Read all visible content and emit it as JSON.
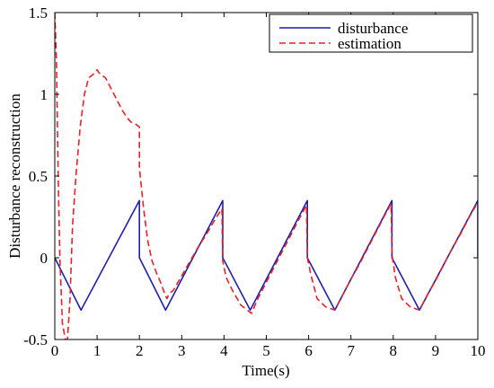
{
  "chart_data": {
    "type": "line",
    "title": "",
    "xlabel": "Time(s)",
    "ylabel": "Disturbance reconstruction",
    "xlim": [
      0,
      10
    ],
    "ylim": [
      -0.5,
      1.5
    ],
    "x_ticks": [
      0,
      1,
      2,
      3,
      4,
      5,
      6,
      7,
      8,
      9,
      10
    ],
    "y_ticks": [
      -0.5,
      0,
      0.5,
      1,
      1.5
    ],
    "y_tick_labels": [
      "-0.5",
      "0",
      "0.5",
      "1",
      "1.5"
    ],
    "grid": false,
    "legend_position": "top-right",
    "series": [
      {
        "name": "disturbance",
        "color": "#1f1fa8",
        "style": "solid",
        "x": [
          0,
          0.62,
          2,
          2,
          2.62,
          3.97,
          3.97,
          4.62,
          5.97,
          5.97,
          6.62,
          7.97,
          7.97,
          8.62,
          10,
          10
        ],
        "y": [
          0,
          -0.32,
          0.35,
          0,
          -0.32,
          0.35,
          0,
          -0.32,
          0.35,
          0,
          -0.32,
          0.35,
          0,
          -0.32,
          0.35,
          0
        ]
      },
      {
        "name": "estimation",
        "color": "#e8202a",
        "style": "dashed",
        "x": [
          0,
          0.04,
          0.08,
          0.12,
          0.18,
          0.25,
          0.3,
          0.36,
          0.42,
          0.5,
          0.6,
          0.7,
          0.8,
          0.9,
          1.0,
          1.05,
          1.1,
          1.2,
          1.3,
          1.4,
          1.5,
          1.6,
          1.7,
          1.8,
          1.9,
          2.0,
          2.0,
          2.1,
          2.2,
          2.3,
          2.4,
          2.5,
          2.6,
          2.65,
          2.7,
          2.8,
          3.0,
          3.2,
          3.4,
          3.6,
          3.8,
          3.95,
          3.97,
          4.05,
          4.2,
          4.4,
          4.6,
          4.65,
          4.8,
          5.0,
          5.2,
          5.4,
          5.6,
          5.8,
          5.95,
          5.97,
          6.05,
          6.2,
          6.4,
          6.62,
          6.8,
          7.0,
          7.2,
          7.4,
          7.6,
          7.8,
          7.95,
          7.97,
          8.05,
          8.2,
          8.4,
          8.62,
          8.8,
          9.0,
          9.2,
          9.4,
          9.6,
          9.8,
          10.0
        ],
        "y": [
          1.5,
          1.2,
          0.5,
          0.0,
          -0.4,
          -0.5,
          -0.5,
          -0.25,
          0.2,
          0.5,
          0.8,
          1.0,
          1.1,
          1.12,
          1.15,
          1.13,
          1.12,
          1.1,
          1.05,
          1.0,
          0.95,
          0.9,
          0.86,
          0.83,
          0.82,
          0.8,
          0.55,
          0.3,
          0.1,
          -0.02,
          -0.09,
          -0.15,
          -0.22,
          -0.25,
          -0.22,
          -0.2,
          -0.11,
          -0.02,
          0.07,
          0.15,
          0.24,
          0.3,
          -0.02,
          -0.12,
          -0.2,
          -0.29,
          -0.33,
          -0.34,
          -0.25,
          -0.15,
          -0.05,
          0.05,
          0.15,
          0.25,
          0.32,
          0.0,
          -0.1,
          -0.25,
          -0.3,
          -0.32,
          -0.23,
          -0.13,
          -0.04,
          0.06,
          0.16,
          0.26,
          0.33,
          0.02,
          -0.12,
          -0.25,
          -0.3,
          -0.32,
          -0.23,
          -0.14,
          -0.04,
          0.06,
          0.15,
          0.25,
          0.34
        ]
      }
    ]
  }
}
